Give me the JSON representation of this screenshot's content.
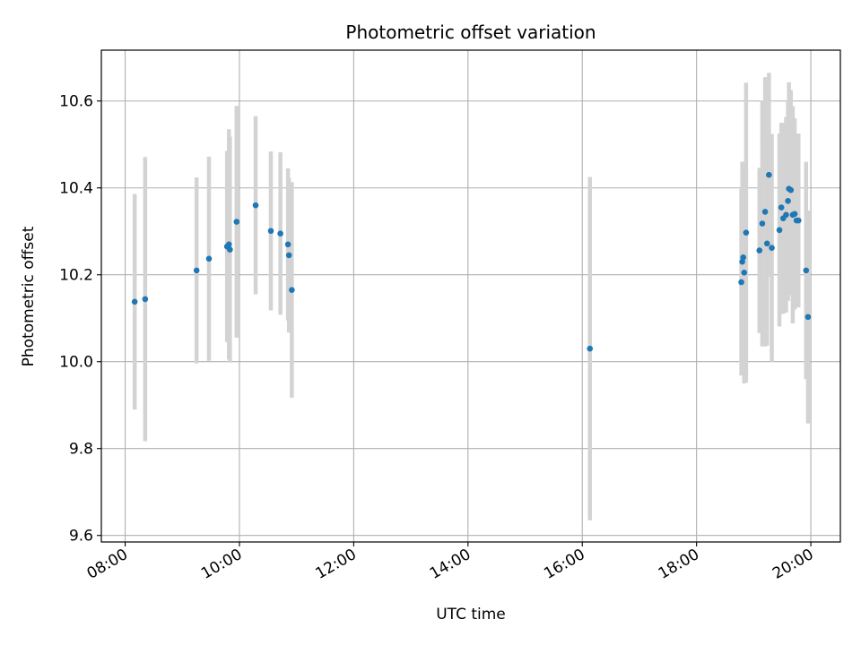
{
  "chart_data": {
    "type": "scatter",
    "title": "Photometric offset variation",
    "xlabel": "UTC time",
    "ylabel": "Photometric offset",
    "x_ticks": [
      "08:00",
      "10:00",
      "12:00",
      "14:00",
      "16:00",
      "18:00",
      "20:00"
    ],
    "y_ticks": [
      "9.6",
      "9.8",
      "10.0",
      "10.2",
      "10.4",
      "10.6"
    ],
    "xlim": [
      "07:35",
      "20:31"
    ],
    "ylim": [
      9.585,
      10.717
    ],
    "grid": true,
    "colors": {
      "point": "#1f77b4",
      "errorbar": "#d3d3d3",
      "grid": "#b0b0b0"
    },
    "points": [
      {
        "t": "08:10",
        "y": 10.138,
        "err": 0.248
      },
      {
        "t": "08:21",
        "y": 10.144,
        "err": 0.327
      },
      {
        "t": "09:15",
        "y": 10.21,
        "err": 0.214
      },
      {
        "t": "09:28",
        "y": 10.237,
        "err": 0.235
      },
      {
        "t": "09:47",
        "y": 10.265,
        "err": 0.22
      },
      {
        "t": "09:49",
        "y": 10.27,
        "err": 0.265
      },
      {
        "t": "09:50",
        "y": 10.258,
        "err": 0.26
      },
      {
        "t": "09:57",
        "y": 10.322,
        "err": 0.267
      },
      {
        "t": "10:17",
        "y": 10.36,
        "err": 0.205
      },
      {
        "t": "10:33",
        "y": 10.301,
        "err": 0.183
      },
      {
        "t": "10:43",
        "y": 10.295,
        "err": 0.187
      },
      {
        "t": "10:51",
        "y": 10.27,
        "err": 0.175
      },
      {
        "t": "10:52",
        "y": 10.245,
        "err": 0.178
      },
      {
        "t": "10:55",
        "y": 10.165,
        "err": 0.248
      },
      {
        "t": "16:08",
        "y": 10.03,
        "err": 0.395
      },
      {
        "t": "18:47",
        "y": 10.183,
        "err": 0.215
      },
      {
        "t": "18:48",
        "y": 10.23,
        "err": 0.23
      },
      {
        "t": "18:49",
        "y": 10.24,
        "err": 0.22
      },
      {
        "t": "18:50",
        "y": 10.205,
        "err": 0.255
      },
      {
        "t": "18:52",
        "y": 10.297,
        "err": 0.345
      },
      {
        "t": "19:06",
        "y": 10.256,
        "err": 0.19
      },
      {
        "t": "19:09",
        "y": 10.318,
        "err": 0.283
      },
      {
        "t": "19:12",
        "y": 10.345,
        "err": 0.31
      },
      {
        "t": "19:14",
        "y": 10.272,
        "err": 0.235
      },
      {
        "t": "19:16",
        "y": 10.43,
        "err": 0.235
      },
      {
        "t": "19:19",
        "y": 10.262,
        "err": 0.262
      },
      {
        "t": "19:27",
        "y": 10.303,
        "err": 0.222
      },
      {
        "t": "19:29",
        "y": 10.355,
        "err": 0.195
      },
      {
        "t": "19:31",
        "y": 10.33,
        "err": 0.22
      },
      {
        "t": "19:34",
        "y": 10.338,
        "err": 0.225
      },
      {
        "t": "19:36",
        "y": 10.37,
        "err": 0.23
      },
      {
        "t": "19:37",
        "y": 10.398,
        "err": 0.245
      },
      {
        "t": "19:39",
        "y": 10.395,
        "err": 0.23
      },
      {
        "t": "19:41",
        "y": 10.338,
        "err": 0.25
      },
      {
        "t": "19:43",
        "y": 10.34,
        "err": 0.22
      },
      {
        "t": "19:45",
        "y": 10.325,
        "err": 0.2
      },
      {
        "t": "19:47",
        "y": 10.325,
        "err": 0.2
      },
      {
        "t": "19:55",
        "y": 10.21,
        "err": 0.25
      },
      {
        "t": "19:57",
        "y": 10.103,
        "err": 0.245
      }
    ]
  }
}
